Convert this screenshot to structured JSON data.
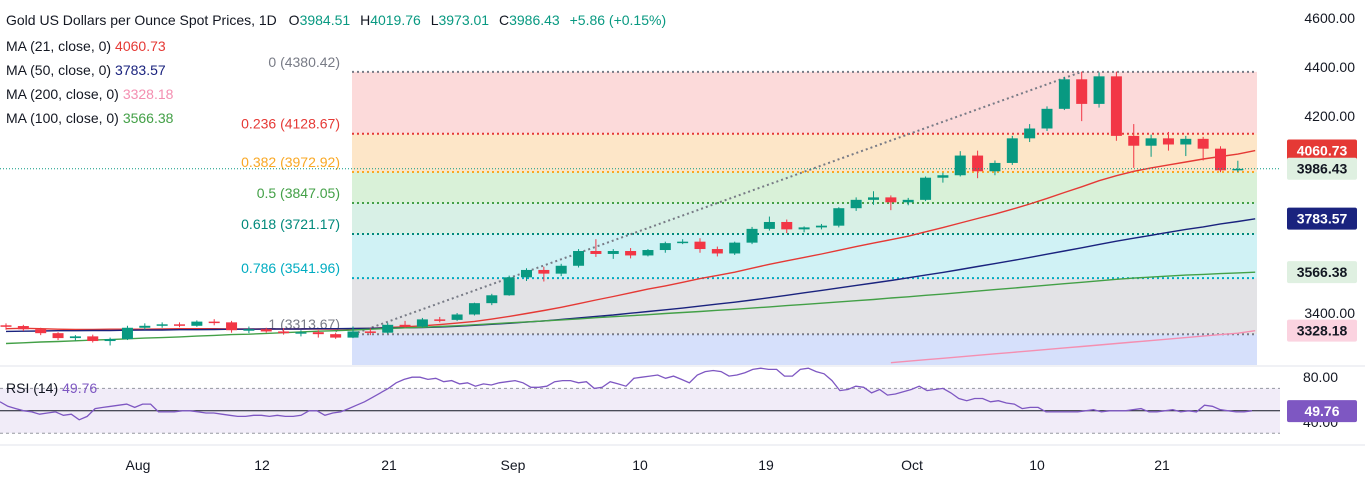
{
  "header": {
    "title": "Gold US Dollars per Ounce Spot Prices, 1D",
    "open_label": "O",
    "open": "3984.51",
    "high_label": "H",
    "high": "4019.76",
    "low_label": "L",
    "low": "3973.01",
    "close_label": "C",
    "close": "3986.43",
    "change": "+5.86 (+0.15%)"
  },
  "moving_averages": [
    {
      "label": "MA (21, close, 0)",
      "value": "4060.73",
      "color": "#e53935"
    },
    {
      "label": "MA (50, close, 0)",
      "value": "3783.57",
      "color": "#1a237e"
    },
    {
      "label": "MA (200, close, 0)",
      "value": "3328.18",
      "color": "#f48fb1"
    },
    {
      "label": "MA (100, close, 0)",
      "value": "3566.38",
      "color": "#43a047"
    }
  ],
  "fibonacci": [
    {
      "ratio": "0",
      "price": "(4380.42)",
      "value": 4380.42,
      "color": "#787b86",
      "fill": "#fcdada"
    },
    {
      "ratio": "0.236",
      "price": "(4128.67)",
      "value": 4128.67,
      "color": "#e53935",
      "fill": "#fde6c8"
    },
    {
      "ratio": "0.382",
      "price": "(3972.92)",
      "value": 3972.92,
      "color": "#f9a825",
      "fill": "#d9f1d8"
    },
    {
      "ratio": "0.5",
      "price": "(3847.05)",
      "value": 3847.05,
      "color": "#43a047",
      "fill": "#d8f0e6"
    },
    {
      "ratio": "0.618",
      "price": "(3721.17)",
      "value": 3721.17,
      "color": "#00897b",
      "fill": "#d0f2f5"
    },
    {
      "ratio": "0.786",
      "price": "(3541.96)",
      "value": 3541.96,
      "color": "#00acc1",
      "fill": "#e3e3e6"
    },
    {
      "ratio": "1",
      "price": "(3313.67)",
      "value": 3313.67,
      "color": "#787b86",
      "fill": "#d6e0fb"
    }
  ],
  "price_tags": [
    {
      "text": "4060.73",
      "value": 4060.73,
      "bg": "#e53935",
      "fg": "#ffffff"
    },
    {
      "text": "3986.43",
      "value": 3986.43,
      "bg": "#dff0e1",
      "fg": "#131722"
    },
    {
      "text": "3783.57",
      "value": 3783.57,
      "bg": "#1a237e",
      "fg": "#ffffff"
    },
    {
      "text": "3566.38",
      "value": 3566.38,
      "bg": "#dff0e1",
      "fg": "#131722"
    },
    {
      "text": "3328.18",
      "value": 3328.18,
      "bg": "#fbd3e0",
      "fg": "#131722"
    }
  ],
  "rsi": {
    "label": "RSI (14)",
    "value": "49.76",
    "color": "#7e57c2",
    "ticks": [
      "80.00",
      "40.00"
    ],
    "tag": "49.76",
    "values": [
      58,
      54,
      52,
      50,
      49,
      47,
      48,
      49,
      46,
      47,
      42,
      45,
      52,
      53,
      54,
      55,
      56,
      53,
      56,
      56,
      49,
      49,
      49,
      50,
      50,
      49,
      48,
      48,
      47,
      46,
      45,
      45,
      46,
      46,
      45,
      46,
      45,
      45,
      46,
      50,
      50,
      46,
      48,
      49,
      52,
      55,
      58,
      62,
      66,
      70,
      75,
      78,
      80,
      80,
      78,
      79,
      76,
      77,
      74,
      75,
      72,
      74,
      73,
      75,
      76,
      77,
      75,
      71,
      71,
      72,
      76,
      77,
      77,
      75,
      76,
      70,
      71,
      76,
      74,
      72,
      79,
      80,
      81,
      82,
      79,
      81,
      78,
      75,
      82,
      85,
      86,
      85,
      81,
      82,
      84,
      87,
      88,
      87,
      87,
      81,
      81,
      87,
      88,
      85,
      83,
      77,
      68,
      69,
      72,
      71,
      66,
      69,
      64,
      65,
      67,
      69,
      72,
      68,
      69,
      70,
      66,
      61,
      59,
      61,
      61,
      58,
      59,
      57,
      56,
      52,
      53,
      53,
      49,
      49,
      49,
      49,
      49,
      50,
      51,
      49,
      50,
      50,
      50,
      51,
      52,
      49,
      49,
      50,
      51,
      49,
      50,
      49,
      55,
      54,
      51,
      50,
      49,
      49,
      50
    ]
  },
  "chart_data": {
    "type": "candlestick",
    "title": "Gold US Dollars per Ounce Spot Prices, 1D",
    "y_axis_ticks": [
      "4600.00",
      "4400.00",
      "4200.00",
      "3400.00"
    ],
    "x_axis_ticks": [
      "Aug",
      "12",
      "21",
      "Sep",
      "10",
      "19",
      "Oct",
      "10",
      "21"
    ],
    "ylim": [
      3200,
      4620
    ],
    "candles": [
      {
        "o": 3350,
        "h": 3358,
        "l": 3332,
        "c": 3347
      },
      {
        "o": 3347,
        "h": 3352,
        "l": 3327,
        "c": 3334
      },
      {
        "o": 3334,
        "h": 3340,
        "l": 3310,
        "c": 3318
      },
      {
        "o": 3318,
        "h": 3322,
        "l": 3290,
        "c": 3298
      },
      {
        "o": 3298,
        "h": 3310,
        "l": 3288,
        "c": 3305
      },
      {
        "o": 3305,
        "h": 3312,
        "l": 3280,
        "c": 3286
      },
      {
        "o": 3286,
        "h": 3300,
        "l": 3268,
        "c": 3294
      },
      {
        "o": 3294,
        "h": 3348,
        "l": 3290,
        "c": 3340
      },
      {
        "o": 3340,
        "h": 3358,
        "l": 3332,
        "c": 3348
      },
      {
        "o": 3348,
        "h": 3362,
        "l": 3340,
        "c": 3354
      },
      {
        "o": 3354,
        "h": 3362,
        "l": 3342,
        "c": 3348
      },
      {
        "o": 3348,
        "h": 3370,
        "l": 3344,
        "c": 3365
      },
      {
        "o": 3365,
        "h": 3375,
        "l": 3350,
        "c": 3362
      },
      {
        "o": 3362,
        "h": 3368,
        "l": 3320,
        "c": 3330
      },
      {
        "o": 3330,
        "h": 3345,
        "l": 3318,
        "c": 3334
      },
      {
        "o": 3334,
        "h": 3340,
        "l": 3320,
        "c": 3325
      },
      {
        "o": 3325,
        "h": 3338,
        "l": 3312,
        "c": 3318
      },
      {
        "o": 3318,
        "h": 3330,
        "l": 3305,
        "c": 3322
      },
      {
        "o": 3322,
        "h": 3330,
        "l": 3300,
        "c": 3314
      },
      {
        "o": 3314,
        "h": 3320,
        "l": 3295,
        "c": 3300
      },
      {
        "o": 3300,
        "h": 3345,
        "l": 3298,
        "c": 3325
      },
      {
        "o": 3325,
        "h": 3338,
        "l": 3310,
        "c": 3320
      },
      {
        "o": 3320,
        "h": 3360,
        "l": 3316,
        "c": 3352
      },
      {
        "o": 3352,
        "h": 3368,
        "l": 3340,
        "c": 3345
      },
      {
        "o": 3345,
        "h": 3380,
        "l": 3340,
        "c": 3374
      },
      {
        "o": 3374,
        "h": 3384,
        "l": 3362,
        "c": 3372
      },
      {
        "o": 3372,
        "h": 3400,
        "l": 3368,
        "c": 3394
      },
      {
        "o": 3394,
        "h": 3442,
        "l": 3390,
        "c": 3440
      },
      {
        "o": 3440,
        "h": 3478,
        "l": 3432,
        "c": 3472
      },
      {
        "o": 3472,
        "h": 3552,
        "l": 3470,
        "c": 3545
      },
      {
        "o": 3545,
        "h": 3582,
        "l": 3530,
        "c": 3575
      },
      {
        "o": 3575,
        "h": 3588,
        "l": 3528,
        "c": 3560
      },
      {
        "o": 3560,
        "h": 3600,
        "l": 3550,
        "c": 3592
      },
      {
        "o": 3592,
        "h": 3660,
        "l": 3585,
        "c": 3652
      },
      {
        "o": 3652,
        "h": 3700,
        "l": 3628,
        "c": 3640
      },
      {
        "o": 3640,
        "h": 3660,
        "l": 3620,
        "c": 3652
      },
      {
        "o": 3652,
        "h": 3664,
        "l": 3622,
        "c": 3634
      },
      {
        "o": 3634,
        "h": 3660,
        "l": 3630,
        "c": 3656
      },
      {
        "o": 3656,
        "h": 3690,
        "l": 3645,
        "c": 3684
      },
      {
        "o": 3684,
        "h": 3700,
        "l": 3680,
        "c": 3690
      },
      {
        "o": 3690,
        "h": 3704,
        "l": 3645,
        "c": 3660
      },
      {
        "o": 3660,
        "h": 3670,
        "l": 3630,
        "c": 3642
      },
      {
        "o": 3642,
        "h": 3690,
        "l": 3636,
        "c": 3686
      },
      {
        "o": 3686,
        "h": 3750,
        "l": 3680,
        "c": 3742
      },
      {
        "o": 3742,
        "h": 3792,
        "l": 3735,
        "c": 3770
      },
      {
        "o": 3770,
        "h": 3780,
        "l": 3725,
        "c": 3740
      },
      {
        "o": 3740,
        "h": 3752,
        "l": 3728,
        "c": 3748
      },
      {
        "o": 3748,
        "h": 3762,
        "l": 3740,
        "c": 3755
      },
      {
        "o": 3755,
        "h": 3830,
        "l": 3748,
        "c": 3826
      },
      {
        "o": 3826,
        "h": 3870,
        "l": 3815,
        "c": 3860
      },
      {
        "o": 3860,
        "h": 3895,
        "l": 3840,
        "c": 3870
      },
      {
        "o": 3870,
        "h": 3878,
        "l": 3818,
        "c": 3850
      },
      {
        "o": 3850,
        "h": 3868,
        "l": 3838,
        "c": 3860
      },
      {
        "o": 3860,
        "h": 3955,
        "l": 3855,
        "c": 3950
      },
      {
        "o": 3950,
        "h": 3970,
        "l": 3930,
        "c": 3960
      },
      {
        "o": 3960,
        "h": 4058,
        "l": 3955,
        "c": 4040
      },
      {
        "o": 4040,
        "h": 4060,
        "l": 3948,
        "c": 3976
      },
      {
        "o": 3976,
        "h": 4020,
        "l": 3960,
        "c": 4010
      },
      {
        "o": 4010,
        "h": 4120,
        "l": 4002,
        "c": 4110
      },
      {
        "o": 4110,
        "h": 4168,
        "l": 4095,
        "c": 4150
      },
      {
        "o": 4150,
        "h": 4240,
        "l": 4140,
        "c": 4230
      },
      {
        "o": 4230,
        "h": 4360,
        "l": 4225,
        "c": 4350
      },
      {
        "o": 4350,
        "h": 4381,
        "l": 4180,
        "c": 4250
      },
      {
        "o": 4250,
        "h": 4378,
        "l": 4235,
        "c": 4362
      },
      {
        "o": 4362,
        "h": 4381,
        "l": 4100,
        "c": 4120
      },
      {
        "o": 4120,
        "h": 4168,
        "l": 3990,
        "c": 4080
      },
      {
        "o": 4080,
        "h": 4125,
        "l": 4035,
        "c": 4110
      },
      {
        "o": 4110,
        "h": 4136,
        "l": 4060,
        "c": 4085
      },
      {
        "o": 4085,
        "h": 4120,
        "l": 4038,
        "c": 4108
      },
      {
        "o": 4108,
        "h": 4116,
        "l": 4020,
        "c": 4068
      },
      {
        "o": 4068,
        "h": 4078,
        "l": 3972,
        "c": 3980
      },
      {
        "o": 3980,
        "h": 4019,
        "l": 3973,
        "c": 3986
      }
    ],
    "series": [
      {
        "name": "MA (21, close, 0)",
        "color": "#e53935",
        "values": [
          3336,
          3338,
          3336,
          3334,
          3333,
          3333,
          3334,
          3334,
          3334,
          3335,
          3336,
          3336,
          3336,
          3335,
          3335,
          3335,
          3335,
          3335,
          3335,
          3334,
          3336,
          3338,
          3341,
          3344,
          3348,
          3353,
          3359,
          3366,
          3375,
          3386,
          3398,
          3410,
          3423,
          3438,
          3453,
          3467,
          3482,
          3497,
          3510,
          3525,
          3540,
          3553,
          3566,
          3582,
          3598,
          3612,
          3626,
          3640,
          3655,
          3670,
          3684,
          3698,
          3712,
          3730,
          3747,
          3766,
          3784,
          3802,
          3822,
          3843,
          3866,
          3890,
          3913,
          3938,
          3958,
          3976,
          3990,
          4002,
          4014,
          4026,
          4036,
          4046,
          4060
        ]
      },
      {
        "name": "MA (50, close, 0)",
        "color": "#1a237e",
        "values": [
          3325,
          3326,
          3327,
          3328,
          3328,
          3329,
          3329,
          3330,
          3331,
          3331,
          3332,
          3332,
          3333,
          3334,
          3334,
          3335,
          3335,
          3335,
          3336,
          3336,
          3337,
          3338,
          3339,
          3340,
          3341,
          3343,
          3346,
          3350,
          3354,
          3358,
          3363,
          3368,
          3374,
          3380,
          3386,
          3392,
          3399,
          3406,
          3413,
          3420,
          3428,
          3436,
          3444,
          3453,
          3462,
          3472,
          3482,
          3492,
          3502,
          3512,
          3522,
          3532,
          3543,
          3554,
          3565,
          3577,
          3589,
          3601,
          3613,
          3626,
          3639,
          3652,
          3665,
          3679,
          3692,
          3704,
          3716,
          3728,
          3740,
          3750,
          3762,
          3772,
          3783
        ]
      },
      {
        "name": "MA (100, close, 0)",
        "color": "#43a047",
        "values": [
          3276,
          3279,
          3282,
          3284,
          3287,
          3290,
          3292,
          3295,
          3298,
          3300,
          3303,
          3306,
          3309,
          3312,
          3314,
          3317,
          3320,
          3323,
          3326,
          3328,
          3331,
          3334,
          3337,
          3340,
          3342,
          3345,
          3348,
          3352,
          3356,
          3360,
          3364,
          3368,
          3372,
          3376,
          3381,
          3385,
          3389,
          3393,
          3398,
          3402,
          3406,
          3411,
          3415,
          3420,
          3425,
          3430,
          3435,
          3440,
          3445,
          3450,
          3455,
          3461,
          3466,
          3472,
          3477,
          3483,
          3489,
          3495,
          3501,
          3507,
          3513,
          3519,
          3525,
          3531,
          3537,
          3542,
          3546,
          3550,
          3554,
          3557,
          3560,
          3563,
          3566
        ]
      },
      {
        "name": "MA (200, close, 0)",
        "color": "#f48fb1",
        "values": [
          null,
          null,
          null,
          null,
          null,
          null,
          null,
          null,
          null,
          null,
          null,
          null,
          null,
          null,
          null,
          null,
          null,
          null,
          null,
          null,
          null,
          null,
          null,
          null,
          null,
          null,
          null,
          null,
          null,
          null,
          null,
          null,
          null,
          null,
          null,
          null,
          null,
          null,
          null,
          null,
          null,
          null,
          null,
          null,
          null,
          null,
          null,
          null,
          null,
          null,
          null,
          3198,
          3204,
          3210,
          3216,
          3222,
          3228,
          3234,
          3240,
          3246,
          3252,
          3258,
          3264,
          3270,
          3276,
          3282,
          3288,
          3294,
          3300,
          3306,
          3312,
          3318,
          3328
        ]
      }
    ]
  }
}
